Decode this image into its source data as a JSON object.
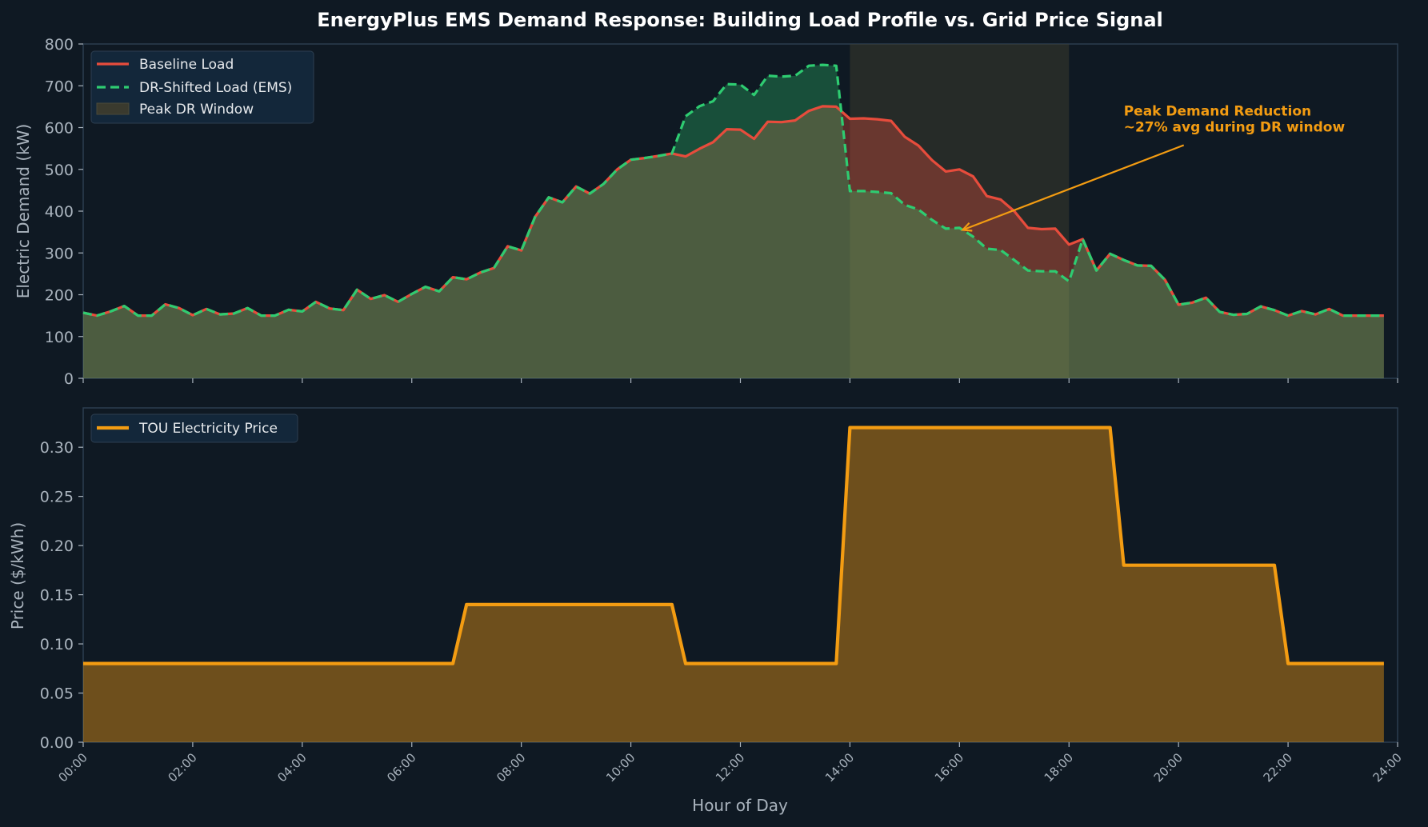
{
  "colors": {
    "background": "#0f1923",
    "axes_bg": "#0f1923",
    "spine": "#2c3e50",
    "text": "#a9b3bd",
    "baseline": "#e74c3c",
    "dr": "#2ecc71",
    "price": "#f39c12",
    "dr_window": "#3a3a2e"
  },
  "title": "EnergyPlus EMS Demand Response: Building Load Profile vs. Grid Price Signal",
  "chart_data": [
    {
      "type": "line",
      "title": "",
      "xlabel": "",
      "ylabel": "Electric Demand (kW)",
      "xlim": [
        0,
        24
      ],
      "ylim": [
        0,
        800
      ],
      "yticks": [
        "0",
        "100",
        "200",
        "300",
        "400",
        "500",
        "600",
        "700",
        "800"
      ],
      "grid": false,
      "legend_position": "top-left",
      "shaded_window": {
        "label": "Peak DR Window",
        "from": 14,
        "to": 18
      },
      "annotation": {
        "lines": [
          "Peak Demand Reduction",
          "~27% avg during DR window"
        ],
        "text_at": [
          19.0,
          600
        ],
        "arrow_to": [
          16.0,
          355
        ]
      },
      "x": [
        0,
        0.25,
        0.5,
        0.75,
        1,
        1.25,
        1.5,
        1.75,
        2,
        2.25,
        2.5,
        2.75,
        3,
        3.25,
        3.5,
        3.75,
        4,
        4.25,
        4.5,
        4.75,
        5,
        5.25,
        5.5,
        5.75,
        6,
        6.25,
        6.5,
        6.75,
        7,
        7.25,
        7.5,
        7.75,
        8,
        8.25,
        8.5,
        8.75,
        9,
        9.25,
        9.5,
        9.75,
        10,
        10.25,
        10.5,
        10.75,
        11,
        11.25,
        11.5,
        11.75,
        12,
        12.25,
        12.5,
        12.75,
        13,
        13.25,
        13.5,
        13.75,
        14,
        14.25,
        14.5,
        14.75,
        15,
        15.25,
        15.5,
        15.75,
        16,
        16.25,
        16.5,
        16.75,
        17,
        17.25,
        17.5,
        17.75,
        18,
        18.25,
        18.5,
        18.75,
        19,
        19.25,
        19.5,
        19.75,
        20,
        20.25,
        20.5,
        20.75,
        21,
        21.25,
        21.5,
        21.75,
        22,
        22.25,
        22.5,
        22.75,
        23,
        23.25,
        23.5,
        23.75
      ],
      "series": [
        {
          "name": "Baseline Load",
          "style": "solid",
          "values": [
            157,
            150,
            160,
            173,
            150,
            150,
            177,
            168,
            151,
            166,
            153,
            155,
            168,
            150,
            150,
            164,
            160,
            183,
            167,
            163,
            212,
            190,
            199,
            183,
            202,
            219,
            208,
            242,
            237,
            253,
            264,
            316,
            306,
            386,
            433,
            421,
            459,
            442,
            465,
            500,
            523,
            527,
            532,
            538,
            531,
            549,
            565,
            596,
            595,
            573,
            614,
            613,
            617,
            640,
            651,
            650,
            621,
            622,
            620,
            616,
            578,
            557,
            522,
            495,
            500,
            483,
            436,
            428,
            400,
            360,
            357,
            358,
            320,
            333,
            258,
            298,
            283,
            270,
            269,
            236,
            176,
            181,
            193,
            159,
            152,
            154,
            172,
            163,
            150,
            161,
            153,
            166,
            150,
            150,
            150,
            150
          ]
        },
        {
          "name": "DR-Shifted Load (EMS)",
          "style": "dashed",
          "values": [
            157,
            150,
            160,
            173,
            150,
            150,
            177,
            168,
            151,
            166,
            153,
            155,
            168,
            150,
            150,
            164,
            160,
            183,
            167,
            163,
            212,
            190,
            199,
            183,
            202,
            219,
            208,
            242,
            237,
            253,
            264,
            316,
            306,
            386,
            433,
            421,
            459,
            442,
            465,
            500,
            523,
            527,
            532,
            538,
            627,
            651,
            663,
            704,
            703,
            678,
            724,
            722,
            724,
            748,
            750,
            748,
            448,
            448,
            446,
            443,
            415,
            404,
            379,
            358,
            360,
            339,
            310,
            307,
            283,
            258,
            256,
            256,
            232,
            333,
            258,
            298,
            283,
            270,
            269,
            236,
            176,
            181,
            193,
            159,
            152,
            154,
            172,
            163,
            150,
            161,
            153,
            166,
            150,
            150,
            150,
            150
          ]
        }
      ]
    },
    {
      "type": "line",
      "title": "",
      "xlabel": "Hour of Day",
      "ylabel": "Price ($/kWh)",
      "xlim": [
        0,
        24
      ],
      "ylim": [
        0,
        0.34
      ],
      "yticks": [
        "0.00",
        "0.05",
        "0.10",
        "0.15",
        "0.20",
        "0.25",
        "0.30"
      ],
      "xticks": [
        "00:00",
        "02:00",
        "04:00",
        "06:00",
        "08:00",
        "10:00",
        "12:00",
        "14:00",
        "16:00",
        "18:00",
        "20:00",
        "22:00",
        "24:00"
      ],
      "grid": false,
      "legend_position": "top-left",
      "x": [
        0,
        6.75,
        7,
        10.75,
        11,
        13.75,
        14,
        18.75,
        19,
        21.75,
        22,
        23.75
      ],
      "series": [
        {
          "name": "TOU Electricity Price",
          "style": "solid",
          "values": [
            0.08,
            0.08,
            0.14,
            0.14,
            0.08,
            0.08,
            0.32,
            0.32,
            0.18,
            0.18,
            0.08,
            0.08
          ]
        }
      ]
    }
  ]
}
